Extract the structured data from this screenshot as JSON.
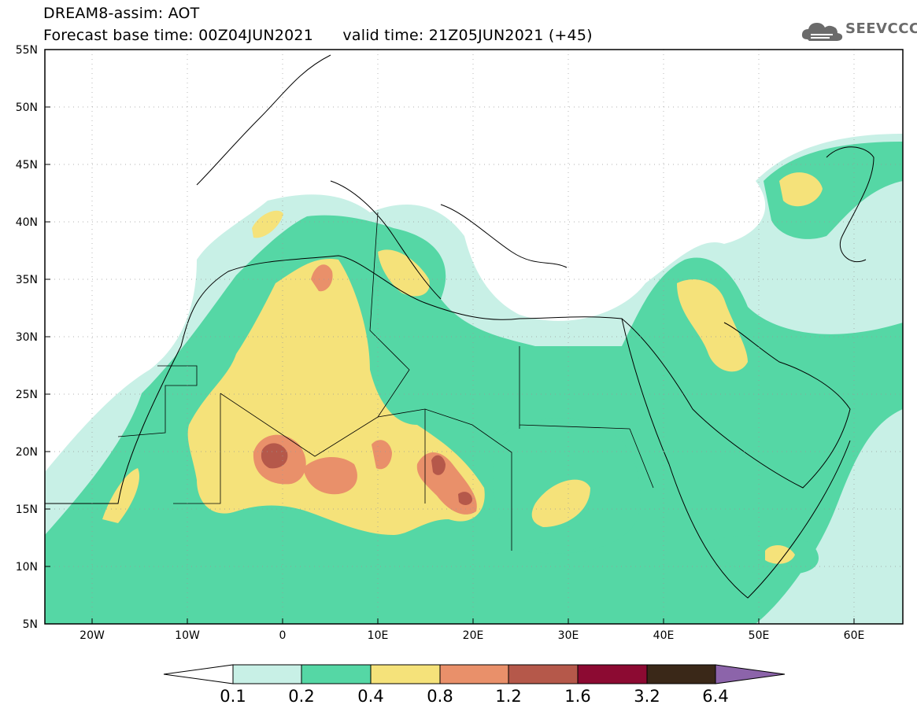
{
  "header": {
    "title": "DREAM8-assim: AOT",
    "forecast_base_label": "Forecast base time: 00Z04JUN2021",
    "valid_time_label": "valid time: 21Z05JUN2021 (+45)"
  },
  "logo": {
    "text": "SEEVCCC",
    "icon": "cloud-icon",
    "color": "#6b6b6b"
  },
  "map": {
    "lat_labels": [
      "55N",
      "50N",
      "45N",
      "40N",
      "35N",
      "30N",
      "25N",
      "20N",
      "15N",
      "10N",
      "5N"
    ],
    "lon_labels": [
      "20W",
      "10W",
      "0",
      "10E",
      "20E",
      "30E",
      "40E",
      "50E",
      "60E"
    ],
    "lon_range": [
      -25,
      65
    ],
    "lat_range": [
      5,
      55
    ]
  },
  "colorbar": {
    "labels": [
      "0.1",
      "0.2",
      "0.4",
      "0.8",
      "1.2",
      "1.6",
      "3.2",
      "6.4"
    ],
    "colors": [
      "#ffffff",
      "#c8f0e6",
      "#55d7a5",
      "#f5e27a",
      "#e9906a",
      "#b5584a",
      "#8c0a32",
      "#3a2818",
      "#8c64aa"
    ]
  }
}
